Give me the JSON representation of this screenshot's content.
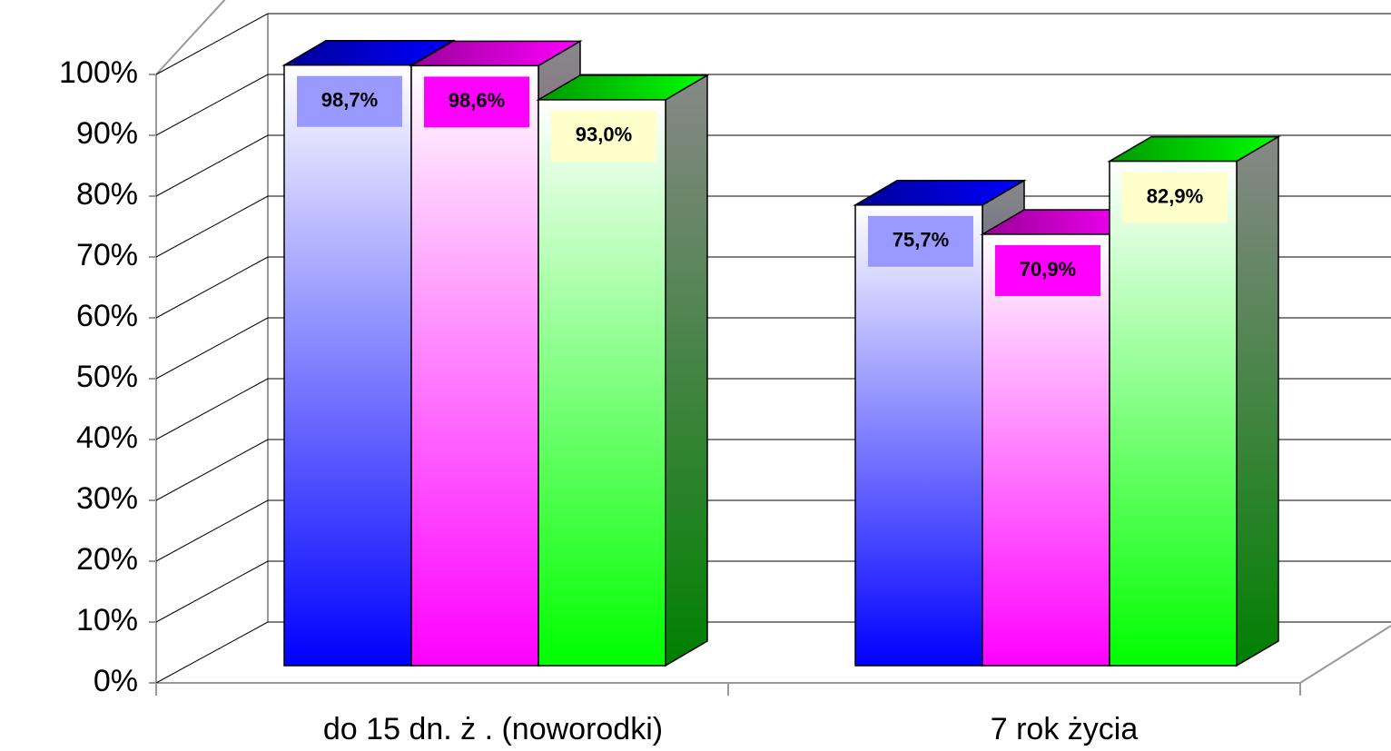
{
  "chart_data": {
    "type": "bar3d",
    "categories": [
      "do 15 dn. ż . (noworodki)",
      "7 rok życia"
    ],
    "series": [
      {
        "color": "#0000ff",
        "label_color": "#9999ff",
        "values": [
          98.7,
          75.7
        ],
        "value_labels": [
          "98,7%",
          "75,7%"
        ]
      },
      {
        "color": "#ff00ff",
        "label_color": "#ff00ff",
        "values": [
          98.6,
          70.9
        ],
        "value_labels": [
          "98,6%",
          "70,9%"
        ]
      },
      {
        "color": "#00ff00",
        "label_color": "#ffffcc",
        "values": [
          93.0,
          82.9
        ],
        "value_labels": [
          "93,0%",
          "82,9%"
        ]
      }
    ],
    "ylim": [
      0,
      100
    ],
    "yticks": [
      {
        "value": 0,
        "label": "0%"
      },
      {
        "value": 10,
        "label": "10%"
      },
      {
        "value": 20,
        "label": "20%"
      },
      {
        "value": 30,
        "label": "30%"
      },
      {
        "value": 40,
        "label": "40%"
      },
      {
        "value": 50,
        "label": "50%"
      },
      {
        "value": 60,
        "label": "60%"
      },
      {
        "value": 70,
        "label": "70%"
      },
      {
        "value": 80,
        "label": "80%"
      },
      {
        "value": 90,
        "label": "90%"
      },
      {
        "value": 100,
        "label": "100%"
      }
    ],
    "grid": true
  }
}
